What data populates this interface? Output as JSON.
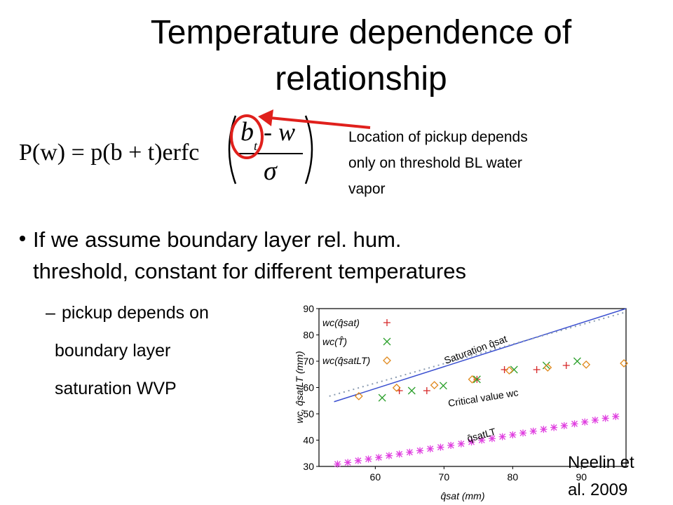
{
  "slide": {
    "title_lines": [
      "Temperature dependence of",
      "relationship"
    ],
    "equation": {
      "lhs": "P(w) = p(b + t)erfc",
      "numerator_base": "b",
      "numerator_sub": "t",
      "numerator_rest": "- w",
      "denominator": "σ"
    },
    "annotation_lines": [
      "Location of pickup depends",
      "only on threshold BL water",
      "vapor"
    ],
    "bullet_lines": [
      "If we assume boundary layer rel. hum.",
      "threshold, constant for different temperatures"
    ],
    "sub_bullet_dash": "–",
    "sub_bullet_lines": [
      "pickup depends on",
      "boundary layer",
      "saturation  WVP"
    ],
    "citation_lines": [
      "Neelin et",
      "al. 2009"
    ]
  },
  "chart_data": {
    "type": "scatter",
    "xlabel": "q̂sat (mm)",
    "ylabel": "wc, q̂satLT (mm)",
    "xlim": [
      51.8,
      96.5
    ],
    "ylim": [
      30,
      90
    ],
    "xticks": [
      60,
      70,
      80,
      90
    ],
    "yticks": [
      30,
      40,
      50,
      60,
      70,
      80,
      90
    ],
    "series": [
      {
        "name": "wc(q̂sat)",
        "color": "#d62728",
        "marker": "plus",
        "x": [
          63.5,
          67.5,
          74.8,
          78.8,
          83.5,
          87.8
        ],
        "values": [
          58.8,
          58.8,
          63.1,
          66.8,
          66.8,
          68.4
        ]
      },
      {
        "name": "wc(T̂)",
        "color": "#2ca02c",
        "marker": "cross",
        "x": [
          61,
          65.3,
          69.9,
          74.8,
          80.2,
          84.9,
          89.4
        ],
        "values": [
          56.1,
          58.8,
          60.7,
          63.1,
          66.8,
          68.4,
          70
        ]
      },
      {
        "name": "wc(q̂satLT)",
        "color": "#e08a1e",
        "marker": "diamond",
        "x": [
          57.6,
          63.1,
          68.6,
          74.1,
          79.5,
          85.1,
          90.7,
          96.2
        ],
        "values": [
          56.7,
          59.9,
          60.9,
          63.1,
          66.5,
          67.6,
          68.7,
          69.2
        ]
      }
    ],
    "annotated_series": [
      {
        "label": "Saturation q̂sat",
        "color": "#3a4fd0",
        "style": "solid",
        "x": [
          54,
          96.5
        ],
        "values": [
          54.6,
          90
        ]
      },
      {
        "label": "Critical value wc",
        "color": "#8a9bb0",
        "style": "dotted",
        "x": [
          53.3,
          96.5
        ],
        "values": [
          56.7,
          88.7
        ]
      },
      {
        "label": "q̂satLT",
        "color": "#e040e0",
        "style": "asterisk",
        "x": [
          54.5,
          56,
          57.5,
          59,
          60.5,
          62,
          63.5,
          65,
          66.5,
          68,
          69.5,
          71,
          72.5,
          74,
          75.5,
          77,
          78.5,
          80,
          81.5,
          83,
          84.5,
          86,
          87.5,
          89,
          90.5,
          92,
          93.5,
          95
        ],
        "values": [
          30.9,
          31.5,
          32.2,
          32.8,
          33.4,
          34.1,
          34.7,
          35.4,
          36.0,
          36.7,
          37.3,
          38.0,
          38.6,
          39.3,
          40.0,
          40.6,
          41.3,
          42.0,
          42.7,
          43.4,
          44.1,
          44.8,
          45.5,
          46.2,
          46.9,
          47.6,
          48.3,
          49.0
        ]
      }
    ]
  }
}
